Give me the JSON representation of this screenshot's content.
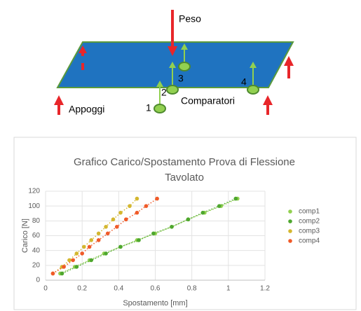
{
  "diagram": {
    "load_label": "Peso",
    "supports_label": "Appoggi",
    "gauges_label": "Comparatori",
    "gauges": [
      "1",
      "2",
      "3",
      "4"
    ]
  },
  "chart_data": {
    "type": "scatter",
    "title": [
      "Grafico Carico/Spostamento Prova di Flessione",
      "Tavolato"
    ],
    "x_label": "Spostamento [mm]",
    "y_label": "Carico [N]",
    "xlim": [
      0,
      1.2
    ],
    "xticks": [
      0,
      0.2,
      0.4,
      0.6,
      0.8,
      1,
      1.2
    ],
    "ylim": [
      0,
      120
    ],
    "yticks": [
      0,
      20,
      40,
      60,
      80,
      100,
      120
    ],
    "grid": true,
    "legend": "right",
    "series": [
      {
        "name": "comp1",
        "color": "#92d050",
        "x": [
          0.08,
          0.16,
          0.24,
          0.32,
          0.41,
          0.5,
          0.6,
          0.69,
          0.78,
          0.87,
          0.96,
          1.05
        ],
        "values": [
          9,
          18,
          27,
          36,
          45,
          54,
          63,
          72,
          82,
          91,
          100,
          110
        ]
      },
      {
        "name": "comp2",
        "color": "#4ea72e",
        "x": [
          0.09,
          0.17,
          0.25,
          0.33,
          0.41,
          0.51,
          0.59,
          0.69,
          0.78,
          0.86,
          0.95,
          1.04
        ],
        "values": [
          9,
          18,
          27,
          36,
          45,
          54,
          63,
          72,
          82,
          91,
          100,
          110
        ]
      },
      {
        "name": "comp3",
        "color": "#d4b72f",
        "x": [
          0.04,
          0.09,
          0.13,
          0.17,
          0.21,
          0.25,
          0.29,
          0.33,
          0.37,
          0.41,
          0.46,
          0.5
        ],
        "values": [
          9,
          18,
          27,
          36,
          45,
          54,
          63,
          72,
          82,
          91,
          100,
          110
        ]
      },
      {
        "name": "comp4",
        "color": "#f05a28",
        "x": [
          0.04,
          0.1,
          0.15,
          0.2,
          0.24,
          0.29,
          0.34,
          0.39,
          0.44,
          0.5,
          0.55,
          0.61
        ],
        "values": [
          9,
          18,
          27,
          36,
          45,
          54,
          63,
          72,
          82,
          91,
          100,
          110
        ]
      }
    ]
  }
}
